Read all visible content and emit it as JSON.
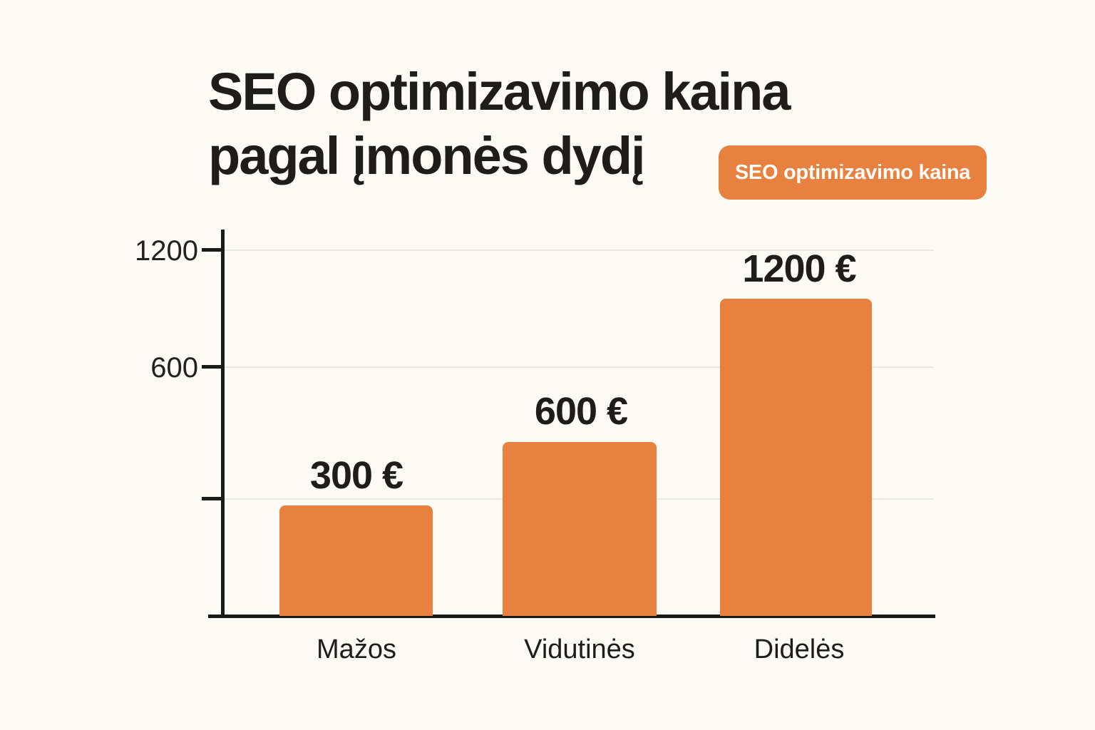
{
  "title": {
    "line1": "SEO optimizavimo kaina",
    "line2": "pagal įmonės dydį"
  },
  "chart_data": {
    "type": "bar",
    "title": "SEO optimizavimo kaina pagal įmonės dydį",
    "categories": [
      "Mažos",
      "Vidutinės",
      "Didelės"
    ],
    "series": [
      {
        "name": "SEO optimizavimo kaina",
        "values": [
          300,
          600,
          1200
        ]
      }
    ],
    "value_labels": [
      "300 €",
      "600 €",
      "1200 €"
    ],
    "xlabel": "",
    "ylabel": "",
    "ylim": [
      0,
      1300
    ],
    "yticks": [
      1200,
      600
    ],
    "ytick_labels": [
      "1200",
      "600"
    ],
    "grid": "horizontal",
    "legend": {
      "label": "SEO optimizavimo kaina",
      "position": "top-right"
    },
    "colors": {
      "bar": "#E8813F",
      "background": "#FBFAF4",
      "axis": "#1A1A19",
      "gridline": "#E9E7E0",
      "text": "#1E1D1B",
      "legend_text": "#FDFCF8"
    }
  }
}
